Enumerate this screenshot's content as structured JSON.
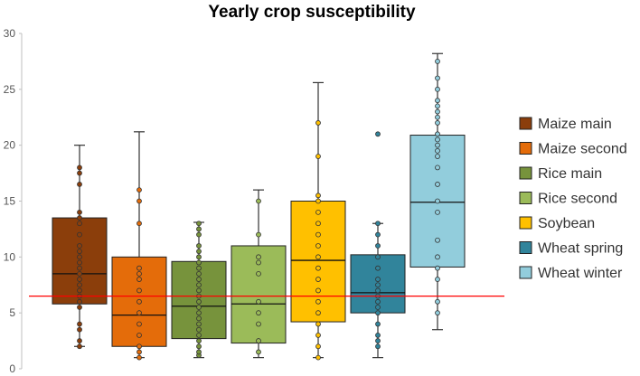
{
  "chart_data": {
    "type": "box",
    "title": "Yearly crop susceptibility",
    "xlabel": "",
    "ylabel": "",
    "ylim": [
      0,
      30
    ],
    "yticks": [
      0,
      5,
      10,
      15,
      20,
      25,
      30
    ],
    "reference_line": {
      "y": 6.5,
      "color": "#ff0000"
    },
    "legend_position": "right",
    "series": [
      {
        "name": "Maize main",
        "color": "#8B3E0B",
        "whisker_low": 2.0,
        "q1": 5.8,
        "median": 8.5,
        "q3": 13.5,
        "whisker_high": 20.0,
        "points": [
          2.0,
          2.5,
          3.5,
          4.0,
          5.5,
          6.0,
          6.5,
          7.0,
          7.5,
          8.0,
          8.5,
          9.0,
          9.5,
          10.0,
          10.5,
          11.0,
          12.0,
          13.0,
          13.5,
          14.0,
          16.5,
          17.5,
          18.0
        ]
      },
      {
        "name": "Maize second",
        "color": "#E46C0A",
        "whisker_low": 1.0,
        "q1": 2.0,
        "median": 4.8,
        "q3": 10.0,
        "whisker_high": 21.2,
        "points": [
          1.0,
          1.5,
          2.0,
          3.0,
          4.0,
          5.0,
          6.0,
          7.0,
          8.0,
          8.5,
          9.0,
          13.0,
          15.0,
          16.0
        ]
      },
      {
        "name": "Rice main",
        "color": "#77933C",
        "whisker_low": 1.0,
        "q1": 2.7,
        "median": 5.6,
        "q3": 9.6,
        "whisker_high": 13.1,
        "points": [
          1.2,
          1.5,
          2.0,
          2.5,
          3.0,
          3.5,
          4.0,
          4.5,
          5.0,
          5.5,
          6.0,
          6.5,
          7.0,
          7.5,
          8.0,
          8.5,
          9.0,
          9.5,
          10.0,
          10.5,
          11.0,
          12.0,
          12.5,
          13.0
        ]
      },
      {
        "name": "Rice second",
        "color": "#9BBB59",
        "whisker_low": 1.0,
        "q1": 2.3,
        "median": 5.8,
        "q3": 11.0,
        "whisker_high": 16.0,
        "points": [
          1.5,
          2.5,
          4.0,
          5.0,
          6.0,
          8.5,
          9.5,
          10.0,
          12.0,
          15.0
        ]
      },
      {
        "name": "Soybean",
        "color": "#FFC000",
        "whisker_low": 1.0,
        "q1": 4.2,
        "median": 9.7,
        "q3": 15.0,
        "whisker_high": 25.6,
        "points": [
          1.0,
          2.0,
          3.0,
          4.0,
          5.0,
          6.0,
          7.0,
          8.0,
          9.0,
          10.0,
          11.0,
          12.0,
          13.0,
          14.0,
          15.0,
          15.5,
          19.0,
          22.0
        ]
      },
      {
        "name": "Wheat spring",
        "color": "#31849B",
        "whisker_low": 1.0,
        "q1": 5.0,
        "median": 6.8,
        "q3": 10.2,
        "whisker_high": 13.0,
        "points": [
          2.0,
          2.5,
          3.0,
          4.0,
          5.0,
          5.5,
          6.0,
          6.5,
          7.0,
          7.5,
          8.0,
          9.0,
          10.0,
          11.0,
          12.0,
          13.0,
          21.0
        ]
      },
      {
        "name": "Wheat winter",
        "color": "#92CDDC",
        "whisker_low": 3.5,
        "q1": 9.1,
        "median": 14.9,
        "q3": 20.9,
        "whisker_high": 28.2,
        "points": [
          5.0,
          6.0,
          8.0,
          9.0,
          10.0,
          11.5,
          14.0,
          15.0,
          16.5,
          18.0,
          19.0,
          19.5,
          20.0,
          20.5,
          21.0,
          22.0,
          22.5,
          23.0,
          23.5,
          24.0,
          25.0,
          26.0,
          27.5
        ]
      }
    ]
  }
}
